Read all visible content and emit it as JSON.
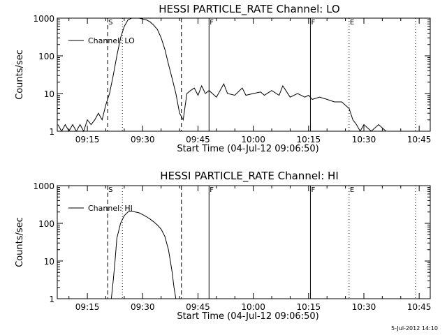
{
  "chart_data": [
    {
      "type": "line",
      "title": "HESSI PARTICLE_RATE Channel: LO",
      "xlabel": "Start Time (04-Jul-12 09:06:50)",
      "ylabel": "Counts/sec",
      "ylim": [
        1,
        1000
      ],
      "y_scale": "log",
      "xlim": [
        "09:06:50",
        "10:48:00"
      ],
      "x_ticks": [
        "09:15",
        "09:30",
        "09:45",
        "10:00",
        "10:15",
        "10:30",
        "10:45"
      ],
      "y_ticks": [
        "1",
        "10",
        "100",
        "1000"
      ],
      "grid": false,
      "legend_position": "top-left",
      "series": [
        {
          "name": "Channel: LO",
          "x": [
            "09:07",
            "09:08",
            "09:09",
            "09:10",
            "09:11",
            "09:12",
            "09:13",
            "09:14",
            "09:15",
            "09:16",
            "09:17",
            "09:18",
            "09:19",
            "09:20",
            "09:21",
            "09:22",
            "09:23",
            "09:24",
            "09:25",
            "09:26",
            "09:27",
            "09:28",
            "09:29",
            "09:30",
            "09:31",
            "09:32",
            "09:33",
            "09:34",
            "09:35",
            "09:36",
            "09:37",
            "09:38",
            "09:39",
            "09:40",
            "09:41",
            "09:42",
            "09:43",
            "09:44",
            "09:45",
            "09:46",
            "09:47",
            "09:48",
            "09:50",
            "09:52",
            "09:53",
            "09:55",
            "09:57",
            "09:58",
            "10:00",
            "10:02",
            "10:03",
            "10:05",
            "10:07",
            "10:08",
            "10:10",
            "10:12",
            "10:14",
            "10:15",
            "10:16",
            "10:18",
            "10:20",
            "10:22",
            "10:24",
            "10:26",
            "10:27",
            "10:28",
            "10:29",
            "10:30",
            "10:32",
            "10:34",
            "10:36",
            "10:38"
          ],
          "values": [
            1.5,
            1,
            1.5,
            1,
            1.5,
            1,
            1.5,
            1,
            2,
            1.5,
            2,
            3,
            2,
            5,
            10,
            30,
            100,
            300,
            600,
            900,
            1000,
            1000,
            1000,
            950,
            900,
            800,
            650,
            500,
            300,
            150,
            60,
            25,
            10,
            3,
            2,
            10,
            12,
            14,
            9,
            16,
            10,
            12,
            8,
            18,
            10,
            9,
            14,
            9,
            10,
            11,
            9,
            12,
            9,
            16,
            8,
            10,
            8,
            9,
            7,
            8,
            7,
            6,
            6,
            4,
            2,
            1.5,
            1,
            1.5,
            1,
            1.5,
            1,
            1
          ]
        }
      ],
      "markers": [
        {
          "label": "S",
          "time": "09:20:30",
          "style": "dashed"
        },
        {
          "time": "09:24:30",
          "style": "dotted"
        },
        {
          "time": "09:40:30",
          "style": "dashed"
        },
        {
          "label": "F",
          "time": "09:48:00",
          "style": "solid"
        },
        {
          "label": "F",
          "time": "10:15:30",
          "style": "solid"
        },
        {
          "label": "E",
          "time": "10:26:00",
          "style": "dotted"
        },
        {
          "time": "10:44:00",
          "style": "dotted"
        }
      ]
    },
    {
      "type": "line",
      "title": "HESSI PARTICLE_RATE Channel: HI",
      "xlabel": "Start Time (04-Jul-12 09:06:50)",
      "ylabel": "Counts/sec",
      "ylim": [
        1,
        1000
      ],
      "y_scale": "log",
      "xlim": [
        "09:06:50",
        "10:48:00"
      ],
      "x_ticks": [
        "09:15",
        "09:30",
        "09:45",
        "10:00",
        "10:15",
        "10:30",
        "10:45"
      ],
      "y_ticks": [
        "1",
        "10",
        "100",
        "1000"
      ],
      "grid": false,
      "legend_position": "top-left",
      "series": [
        {
          "name": "Channel: HI",
          "x": [
            "09:21:30",
            "09:22:00",
            "09:22:30",
            "09:23:00",
            "09:24:00",
            "09:25:00",
            "09:26:00",
            "09:27:00",
            "09:28:00",
            "09:29:00",
            "09:30:00",
            "09:31:00",
            "09:32:00",
            "09:33:00",
            "09:34:00",
            "09:35:00",
            "09:36:00",
            "09:37:00",
            "09:37:30",
            "09:38:00",
            "09:38:30",
            "09:39:00"
          ],
          "values": [
            1,
            3,
            10,
            40,
            100,
            160,
            200,
            210,
            200,
            190,
            170,
            150,
            130,
            110,
            90,
            70,
            45,
            20,
            10,
            5,
            2,
            1
          ]
        }
      ],
      "markers": [
        {
          "label": "S",
          "time": "09:20:30",
          "style": "dashed"
        },
        {
          "time": "09:24:30",
          "style": "dotted"
        },
        {
          "time": "09:40:30",
          "style": "dashed"
        },
        {
          "label": "F",
          "time": "09:48:00",
          "style": "solid"
        },
        {
          "label": "F",
          "time": "10:15:30",
          "style": "solid"
        },
        {
          "label": "E",
          "time": "10:26:00",
          "style": "dotted"
        },
        {
          "time": "10:44:00",
          "style": "dotted"
        }
      ]
    }
  ],
  "footer": {
    "timestamp": "5-Jul-2012 14:10"
  }
}
